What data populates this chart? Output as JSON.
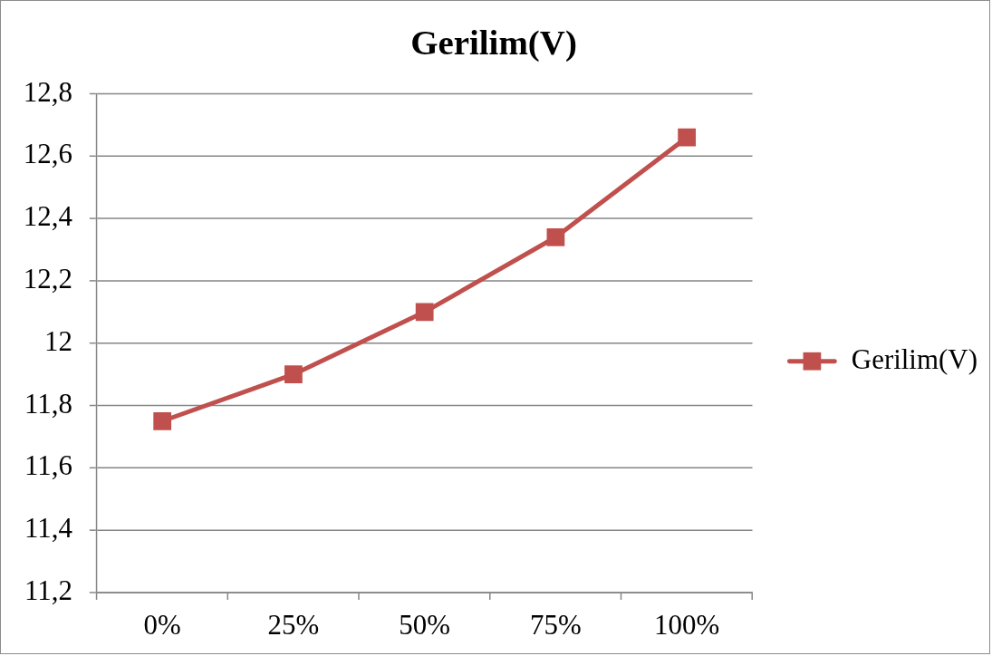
{
  "chart_data": {
    "type": "line",
    "title": "Gerilim(V)",
    "categories": [
      "0%",
      "25%",
      "50%",
      "75%",
      "100%"
    ],
    "series": [
      {
        "name": "Gerilim(V)",
        "color": "#c0504d",
        "values": [
          11.75,
          11.9,
          12.1,
          12.34,
          12.66
        ]
      }
    ],
    "ylim": [
      11.2,
      12.8
    ],
    "yticks": [
      {
        "value": 11.2,
        "label": "11,2"
      },
      {
        "value": 11.4,
        "label": "11,4"
      },
      {
        "value": 11.6,
        "label": "11,6"
      },
      {
        "value": 11.8,
        "label": "11,8"
      },
      12,
      {
        "value": 12.2,
        "label": "12,2"
      },
      {
        "value": 12.4,
        "label": "12,4"
      },
      {
        "value": 12.6,
        "label": "12,6"
      },
      {
        "value": 12.8,
        "label": "12,8"
      }
    ],
    "grid": "y",
    "legend": "right",
    "marker": "square",
    "line_style": "solid"
  }
}
